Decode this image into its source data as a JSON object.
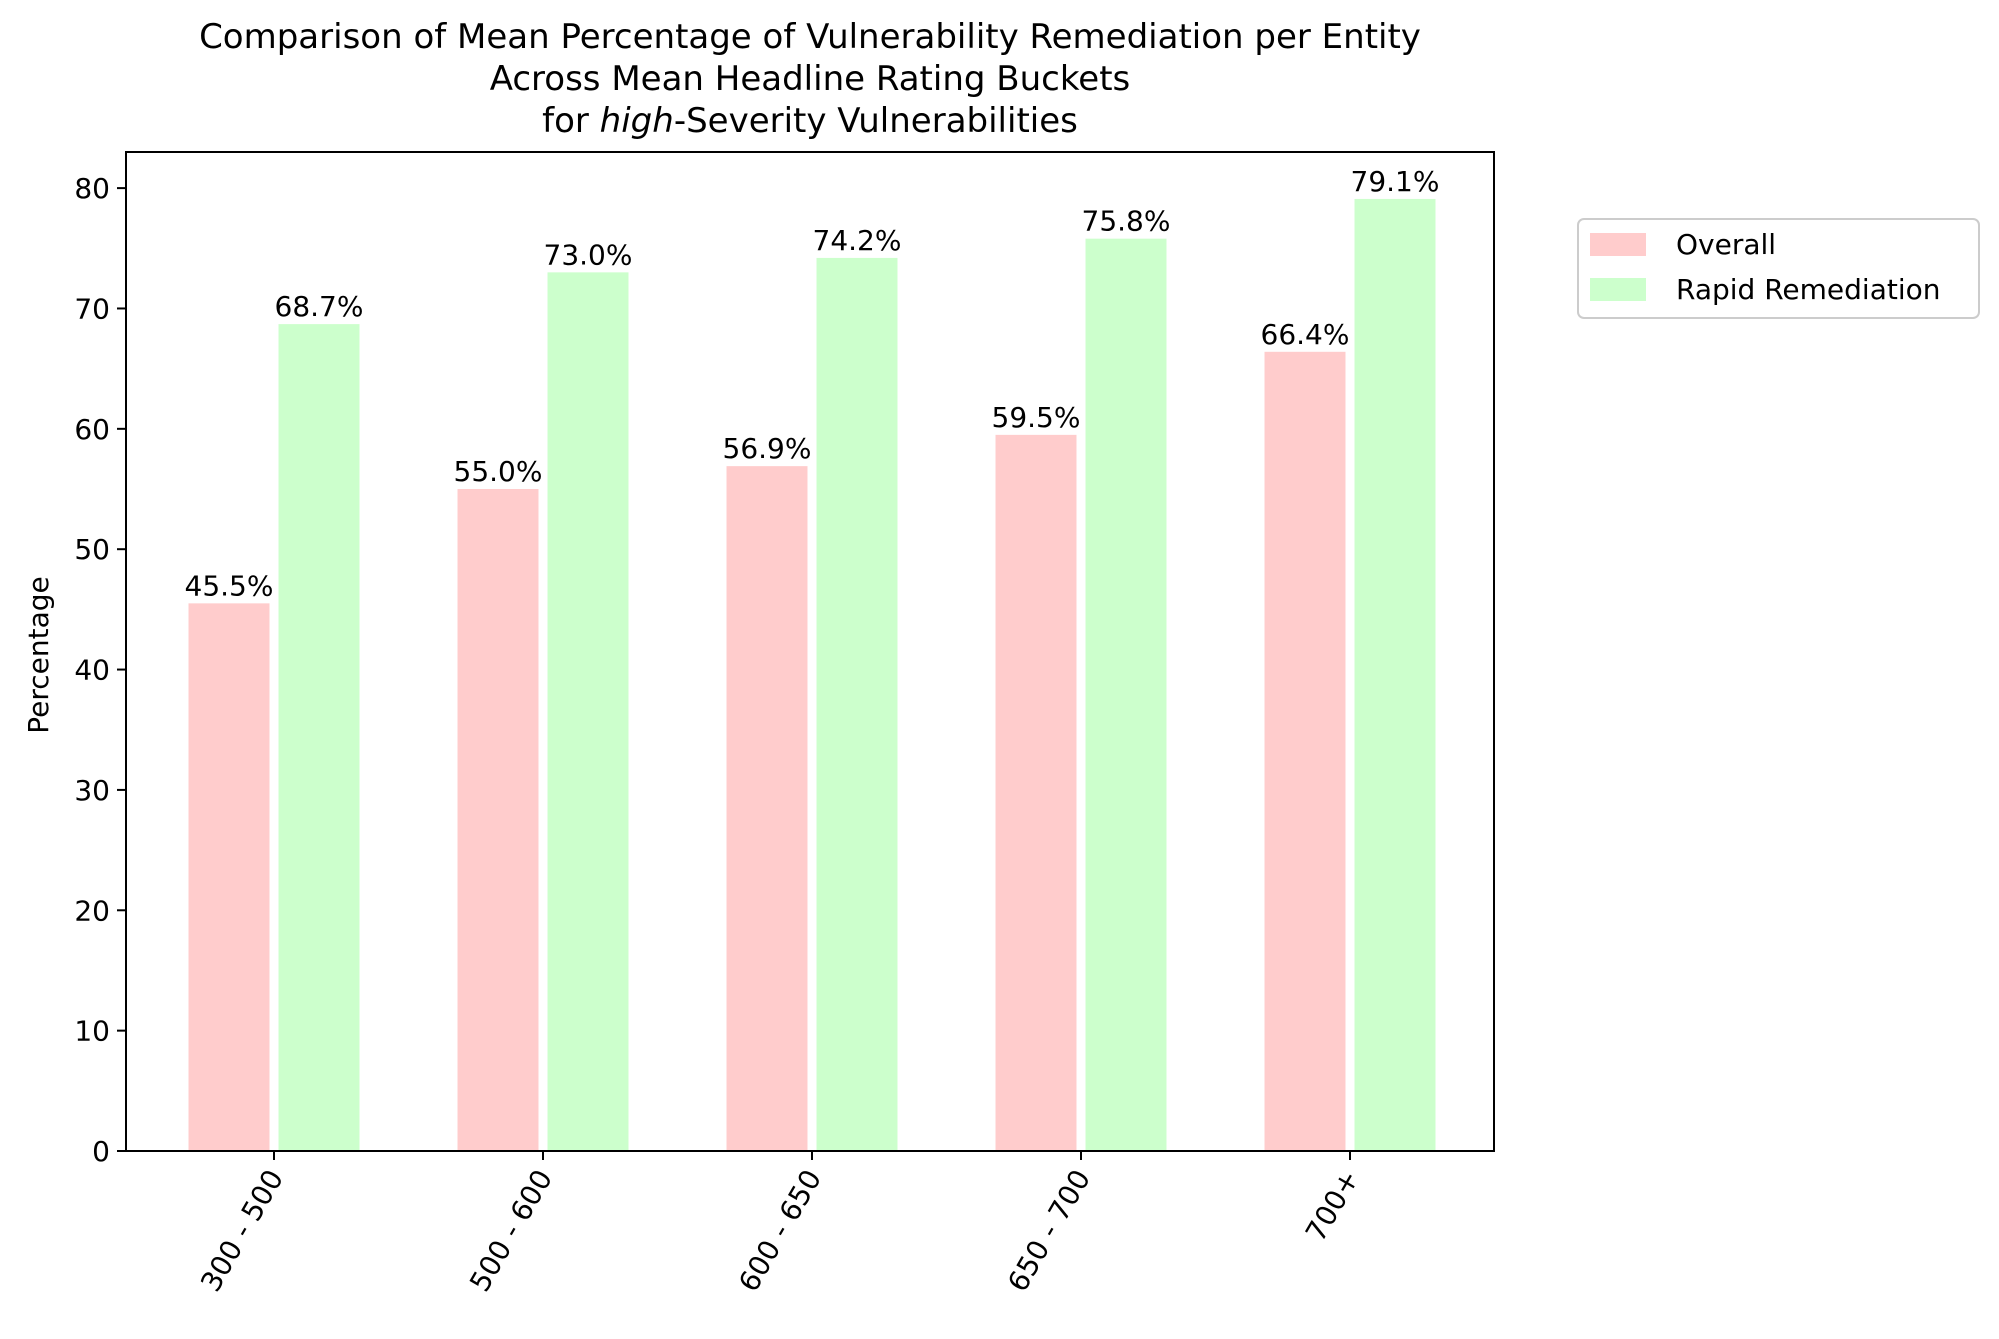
{
  "chart_data": {
    "type": "bar",
    "title_lines": [
      "Comparison of Mean Percentage of Vulnerability Remediation per Entity",
      "Across Mean Headline Rating Buckets"
    ],
    "title_last_line": {
      "italic_part": "high",
      "rest": "-Severity Vulnerabilities",
      "prefix": "for "
    },
    "xlabel": "",
    "ylabel": "Percentage",
    "ylim": [
      0,
      83
    ],
    "yticks": [
      0,
      10,
      20,
      30,
      40,
      50,
      60,
      70,
      80
    ],
    "categories": [
      "300 - 500",
      "500 - 600",
      "600 - 650",
      "650 - 700",
      "700+"
    ],
    "series": [
      {
        "name": "Overall",
        "color": "#ffcccc",
        "values": [
          45.5,
          55.0,
          56.9,
          59.5,
          66.4
        ],
        "labels": [
          "45.5%",
          "55.0%",
          "56.9%",
          "59.5%",
          "66.4%"
        ]
      },
      {
        "name": "Rapid Remediation",
        "color": "#ccffcc",
        "values": [
          68.7,
          73.0,
          74.2,
          75.8,
          79.1
        ],
        "labels": [
          "68.7%",
          "73.0%",
          "74.2%",
          "75.8%",
          "79.1%"
        ]
      }
    ],
    "legend_position": "outside-right-top",
    "grid": false
  }
}
